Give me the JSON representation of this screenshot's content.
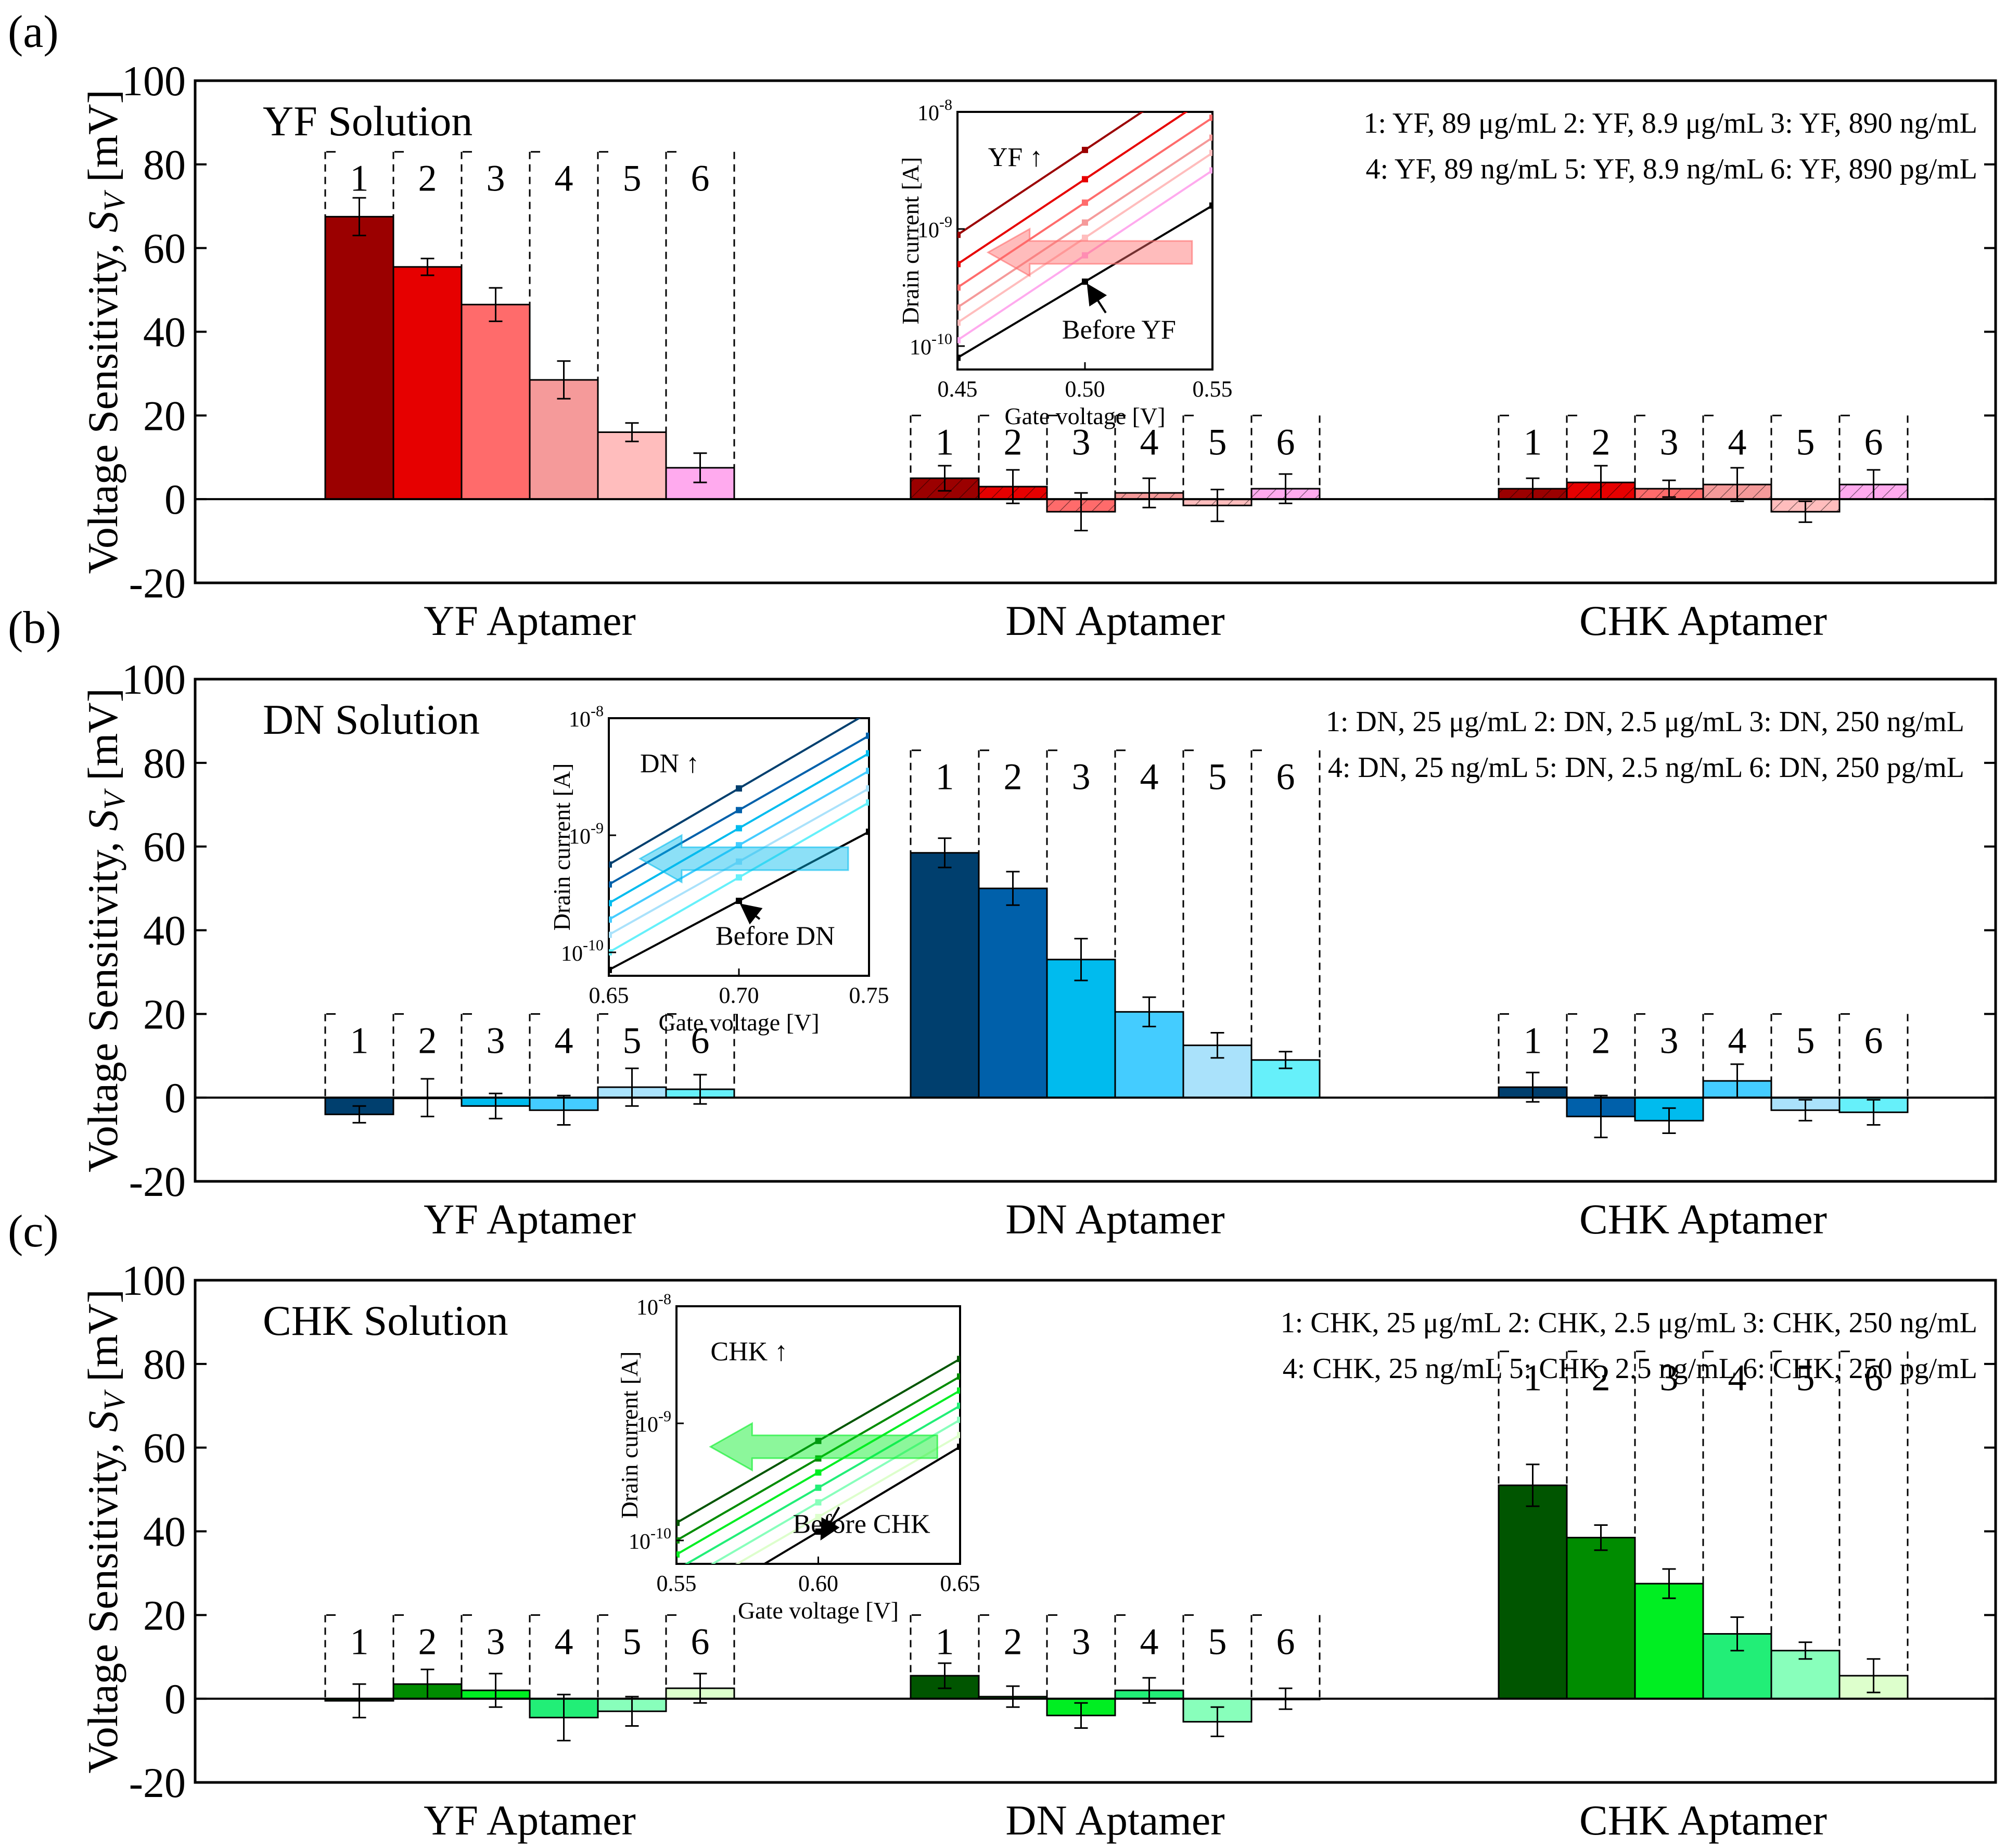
{
  "figure": {
    "y_axis_label_main": "Voltage Sensitivity, ",
    "y_axis_label_sym": "S",
    "y_axis_label_sub": "V",
    "y_axis_label_unit": " [mV]"
  },
  "colors": {
    "YF": [
      "#9b0000",
      "#e60000",
      "#ff6b6b",
      "#f59a9a",
      "#ffbdbd",
      "#ffaaee"
    ],
    "DN": [
      "#003f6e",
      "#0060aa",
      "#00bbee",
      "#44ccff",
      "#aae2fb",
      "#66f0fa"
    ],
    "CHK": [
      "#005500",
      "#008c00",
      "#00ee22",
      "#22ee77",
      "#88ffbb",
      "#ddffcc"
    ]
  },
  "chart_data": [
    {
      "panel": "(a)",
      "type": "bar",
      "title": "YF Solution",
      "solution": "YF",
      "ylabel": "Voltage Sensitivity, S_V [mV]",
      "ylim": [
        -20,
        100
      ],
      "yticks": [
        -20,
        0,
        20,
        40,
        60,
        80,
        100
      ],
      "group_labels": [
        "YF Aptamer",
        "DN Aptamer",
        "CHK Aptamer"
      ],
      "bar_labels": [
        "1",
        "2",
        "3",
        "4",
        "5",
        "6"
      ],
      "legend_lines": [
        [
          "1: YF, 89 μg/mL",
          "2: YF, 8.9 μg/mL",
          "3: YF, 890 ng/mL"
        ],
        [
          "4: YF, 89 ng/mL",
          "5: YF, 8.9 ng/mL",
          "6: YF, 890 pg/mL"
        ]
      ],
      "series": [
        {
          "name": "YF Aptamer",
          "hatched": false,
          "values": [
            67.5,
            55.5,
            46.5,
            28.5,
            16,
            7.5
          ],
          "errors": [
            4.5,
            2,
            4,
            4.5,
            2.2,
            3.5
          ]
        },
        {
          "name": "DN Aptamer",
          "hatched": true,
          "values": [
            5,
            3,
            -3,
            1.5,
            -1.5,
            2.5
          ],
          "errors": [
            3,
            4,
            4.5,
            3.5,
            3.8,
            3.5
          ]
        },
        {
          "name": "CHK Aptamer",
          "hatched": true,
          "values": [
            2.5,
            4,
            2.5,
            3.5,
            -3,
            3.5
          ],
          "errors": [
            2.5,
            4,
            2,
            4,
            2.5,
            3.5
          ]
        }
      ],
      "inset": {
        "arrow_label": "YF ↑",
        "before_label": "Before YF",
        "xlabel": "Gate voltage [V]",
        "ylabel": "Drain current [A]",
        "xticks": [
          "0.45",
          "0.50",
          "0.55"
        ],
        "ytick_base": "10",
        "ytick_exponents": [
          "-8",
          "-9",
          "-10"
        ],
        "xlim": [
          0.45,
          0.55
        ],
        "log_ylim": [
          -10.2,
          -8
        ],
        "lines_log_y_at_xmin": [
          -9.05,
          -9.3,
          -9.5,
          -9.67,
          -9.8,
          -9.95,
          -10.1
        ],
        "lines_log_y_at_xmax": [
          -7.6,
          -7.85,
          -8.05,
          -8.22,
          -8.35,
          -8.5,
          -8.8
        ]
      }
    },
    {
      "panel": "(b)",
      "type": "bar",
      "title": "DN Solution",
      "solution": "DN",
      "ylabel": "Voltage Sensitivity, S_V [mV]",
      "ylim": [
        -20,
        100
      ],
      "yticks": [
        -20,
        0,
        20,
        40,
        60,
        80,
        100
      ],
      "group_labels": [
        "YF Aptamer",
        "DN Aptamer",
        "CHK Aptamer"
      ],
      "bar_labels": [
        "1",
        "2",
        "3",
        "4",
        "5",
        "6"
      ],
      "legend_lines": [
        [
          "1: DN, 25 μg/mL",
          "2: DN, 2.5 μg/mL",
          "3: DN, 250 ng/mL"
        ],
        [
          "4: DN, 25 ng/mL",
          "5: DN, 2.5 ng/mL",
          "6: DN, 250 pg/mL"
        ]
      ],
      "series": [
        {
          "name": "YF Aptamer",
          "hatched": false,
          "values": [
            -4,
            0,
            -2,
            -3,
            2.5,
            2
          ],
          "errors": [
            2,
            4.5,
            3,
            3.5,
            4.5,
            3.5
          ]
        },
        {
          "name": "DN Aptamer",
          "hatched": false,
          "values": [
            58.5,
            50,
            33,
            20.5,
            12.5,
            9
          ],
          "errors": [
            3.5,
            4,
            5,
            3.5,
            3,
            2
          ]
        },
        {
          "name": "CHK Aptamer",
          "hatched": false,
          "values": [
            2.5,
            -4.5,
            -5.5,
            4,
            -3,
            -3.5
          ],
          "errors": [
            3.5,
            5,
            3,
            4,
            2.5,
            3
          ]
        }
      ],
      "inset": {
        "arrow_label": "DN ↑",
        "before_label": "Before DN",
        "xlabel": "Gate voltage [V]",
        "ylabel": "Drain current [A]",
        "xticks": [
          "0.65",
          "0.70",
          "0.75"
        ],
        "ytick_base": "10",
        "ytick_exponents": [
          "-8",
          "-9",
          "-10"
        ],
        "xlim": [
          0.65,
          0.75
        ],
        "log_ylim": [
          -10.2,
          -8
        ],
        "lines_log_y_at_xmin": [
          -9.25,
          -9.42,
          -9.58,
          -9.72,
          -9.85,
          -10.0,
          -10.15
        ],
        "lines_log_y_at_xmax": [
          -7.95,
          -8.15,
          -8.3,
          -8.45,
          -8.6,
          -8.72,
          -8.97
        ]
      }
    },
    {
      "panel": "(c)",
      "type": "bar",
      "title": "CHK Solution",
      "solution": "CHK",
      "ylabel": "Voltage Sensitivity, S_V [mV]",
      "ylim": [
        -20,
        100
      ],
      "yticks": [
        -20,
        0,
        20,
        40,
        60,
        80,
        100
      ],
      "group_labels": [
        "YF Aptamer",
        "DN Aptamer",
        "CHK Aptamer"
      ],
      "bar_labels": [
        "1",
        "2",
        "3",
        "4",
        "5",
        "6"
      ],
      "legend_lines": [
        [
          "1: CHK, 25 μg/mL",
          "2: CHK, 2.5 μg/mL",
          "3: CHK, 250 ng/mL"
        ],
        [
          "4: CHK, 25 ng/mL",
          "5: CHK, 2.5 ng/mL",
          "6: CHK, 250 pg/mL"
        ]
      ],
      "series": [
        {
          "name": "YF Aptamer",
          "hatched": false,
          "values": [
            -0.5,
            3.5,
            2,
            -4.5,
            -3,
            2.5
          ],
          "errors": [
            4,
            3.5,
            4,
            5.5,
            3.5,
            3.5
          ]
        },
        {
          "name": "DN Aptamer",
          "hatched": false,
          "values": [
            5.5,
            0.5,
            -4,
            2,
            -5.5,
            0
          ],
          "errors": [
            3,
            2.5,
            3,
            3,
            3.5,
            2.5
          ]
        },
        {
          "name": "CHK Aptamer",
          "hatched": false,
          "values": [
            51,
            38.5,
            27.5,
            15.5,
            11.5,
            5.5
          ],
          "errors": [
            5,
            3,
            3.5,
            4,
            2,
            4
          ]
        }
      ],
      "inset": {
        "arrow_label": "CHK ↑",
        "before_label": "Before CHK",
        "xlabel": "Gate voltage [V]",
        "ylabel": "Drain current [A]",
        "xticks": [
          "0.55",
          "0.60",
          "0.65"
        ],
        "ytick_base": "10",
        "ytick_exponents": [
          "-8",
          "-9",
          "-10"
        ],
        "xlim": [
          0.55,
          0.65
        ],
        "log_ylim": [
          -10.2,
          -8
        ],
        "lines_log_y_at_xmin": [
          -9.85,
          -10.0,
          -10.12,
          -10.25,
          -10.38,
          -10.5,
          -10.65
        ],
        "lines_log_y_at_xmax": [
          -8.45,
          -8.6,
          -8.72,
          -8.85,
          -8.97,
          -9.1,
          -9.2
        ]
      }
    }
  ]
}
